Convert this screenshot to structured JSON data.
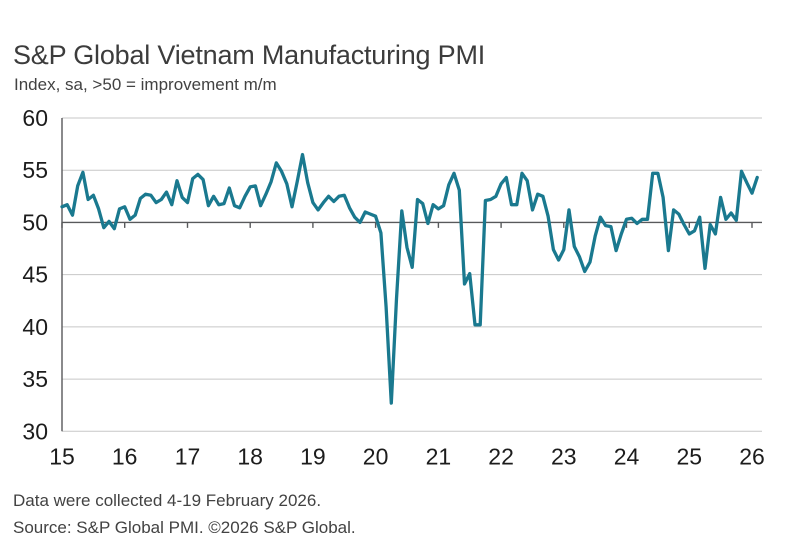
{
  "chart_data": {
    "type": "line",
    "title": "S&P Global Vietnam Manufacturing PMI",
    "subtitle": "Index, sa, >50 = improvement m/m",
    "frequency": "monthly",
    "x_start": "2015-01",
    "x_end": "2026-02",
    "x_tick_labels": [
      "15",
      "16",
      "17",
      "18",
      "19",
      "20",
      "21",
      "22",
      "23",
      "24",
      "25",
      "26"
    ],
    "y_ticks": [
      60,
      55,
      50,
      45,
      40,
      35,
      30
    ],
    "ylim": [
      30,
      60
    ],
    "baseline_value": 50,
    "grid": "horizontal",
    "legend": "none",
    "line_color": "#1A798F",
    "axis_color": "#58595B",
    "gridline_color": "#C7C7C7",
    "tick_label_color": "#1C1C1C",
    "values": [
      51.5,
      51.7,
      50.7,
      53.5,
      54.8,
      52.2,
      52.6,
      51.3,
      49.5,
      50.1,
      49.4,
      51.3,
      51.5,
      50.3,
      50.7,
      52.3,
      52.7,
      52.6,
      51.9,
      52.2,
      52.9,
      51.7,
      54.0,
      52.4,
      51.9,
      54.2,
      54.6,
      54.1,
      51.6,
      52.5,
      51.7,
      51.8,
      53.3,
      51.6,
      51.4,
      52.5,
      53.4,
      53.5,
      51.6,
      52.7,
      53.9,
      55.7,
      54.9,
      53.7,
      51.5,
      53.9,
      56.5,
      53.8,
      51.9,
      51.2,
      51.9,
      52.5,
      52.0,
      52.5,
      52.6,
      51.4,
      50.5,
      50.0,
      51.0,
      50.8,
      50.6,
      49.0,
      41.9,
      32.7,
      42.7,
      51.1,
      47.6,
      45.7,
      52.2,
      51.8,
      49.9,
      51.7,
      51.3,
      51.6,
      53.6,
      54.7,
      53.1,
      44.1,
      45.1,
      40.2,
      40.2,
      52.1,
      52.2,
      52.5,
      53.7,
      54.3,
      51.7,
      51.7,
      54.7,
      54.0,
      51.2,
      52.7,
      52.5,
      50.6,
      47.4,
      46.4,
      47.4,
      51.2,
      47.7,
      46.7,
      45.3,
      46.2,
      48.7,
      50.5,
      49.7,
      49.6,
      47.3,
      48.9,
      50.3,
      50.4,
      49.9,
      50.3,
      50.3,
      54.7,
      54.7,
      52.4,
      47.3,
      51.2,
      50.8,
      49.8,
      48.9,
      49.2,
      50.5,
      45.6,
      49.8,
      48.9,
      52.4,
      50.3,
      50.9,
      50.2,
      54.9,
      53.8,
      52.8,
      54.3
    ]
  },
  "footer": {
    "line1": "Data were collected 4-19 February 2026.",
    "line2": "Source: S&P Global PMI. ©2026 S&P Global."
  }
}
